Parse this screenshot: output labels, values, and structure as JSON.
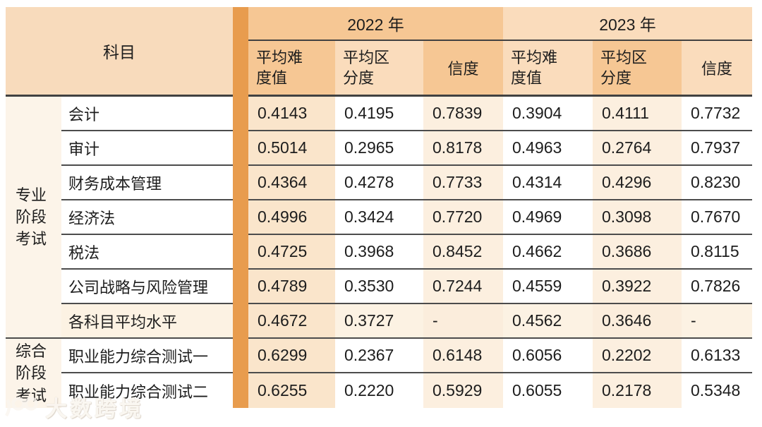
{
  "table": {
    "subject_header": "科目",
    "years": [
      {
        "label": "2022 年"
      },
      {
        "label": "2023 年"
      }
    ],
    "sub_headers": [
      "平均难度值",
      "平均区分度",
      "信度",
      "平均难度值",
      "平均区分度",
      "信度"
    ],
    "groups": [
      {
        "label": "专业阶段考试",
        "rows": [
          {
            "subject": "会计",
            "values": [
              "0.4143",
              "0.4195",
              "0.7839",
              "0.3904",
              "0.4111",
              "0.7732"
            ]
          },
          {
            "subject": "审计",
            "values": [
              "0.5014",
              "0.2965",
              "0.8178",
              "0.4963",
              "0.2764",
              "0.7937"
            ]
          },
          {
            "subject": "财务成本管理",
            "values": [
              "0.4364",
              "0.4278",
              "0.7733",
              "0.4314",
              "0.4296",
              "0.8230"
            ]
          },
          {
            "subject": "经济法",
            "values": [
              "0.4996",
              "0.3424",
              "0.7720",
              "0.4969",
              "0.3098",
              "0.7670"
            ]
          },
          {
            "subject": "税法",
            "values": [
              "0.4725",
              "0.3968",
              "0.8452",
              "0.4662",
              "0.3686",
              "0.8115"
            ]
          },
          {
            "subject": "公司战略与风险管理",
            "values": [
              "0.4789",
              "0.3530",
              "0.7244",
              "0.4559",
              "0.3922",
              "0.7826"
            ]
          },
          {
            "subject": "各科目平均水平",
            "values": [
              "0.4672",
              "0.3727",
              "-",
              "0.4562",
              "0.3646",
              "-"
            ],
            "highlight": true
          }
        ]
      },
      {
        "label": "综合阶段考试",
        "rows": [
          {
            "subject": "职业能力综合测试一",
            "values": [
              "0.6299",
              "0.2367",
              "0.6148",
              "0.6056",
              "0.2202",
              "0.6133"
            ]
          },
          {
            "subject": "职业能力综合测试二",
            "values": [
              "0.6255",
              "0.2220",
              "0.5929",
              "0.6055",
              "0.2178",
              "0.5348"
            ]
          }
        ]
      }
    ]
  },
  "watermark": {
    "text": "大数跨境"
  },
  "colors": {
    "orange_bar": "#e89c4e",
    "header_dark_peach": "#f6c794",
    "header_light_peach": "#fadcbc",
    "subject_header_bg": "#f8dbbc",
    "column_tint_strong": "#fae5cb",
    "column_tint_soft": "#fcefdf",
    "group_cell_bg": "#fcf4e9",
    "highlight_row_bg": "#fcf2e3",
    "line_color": "#4c4c4c",
    "text_color": "#1d1d1d"
  }
}
